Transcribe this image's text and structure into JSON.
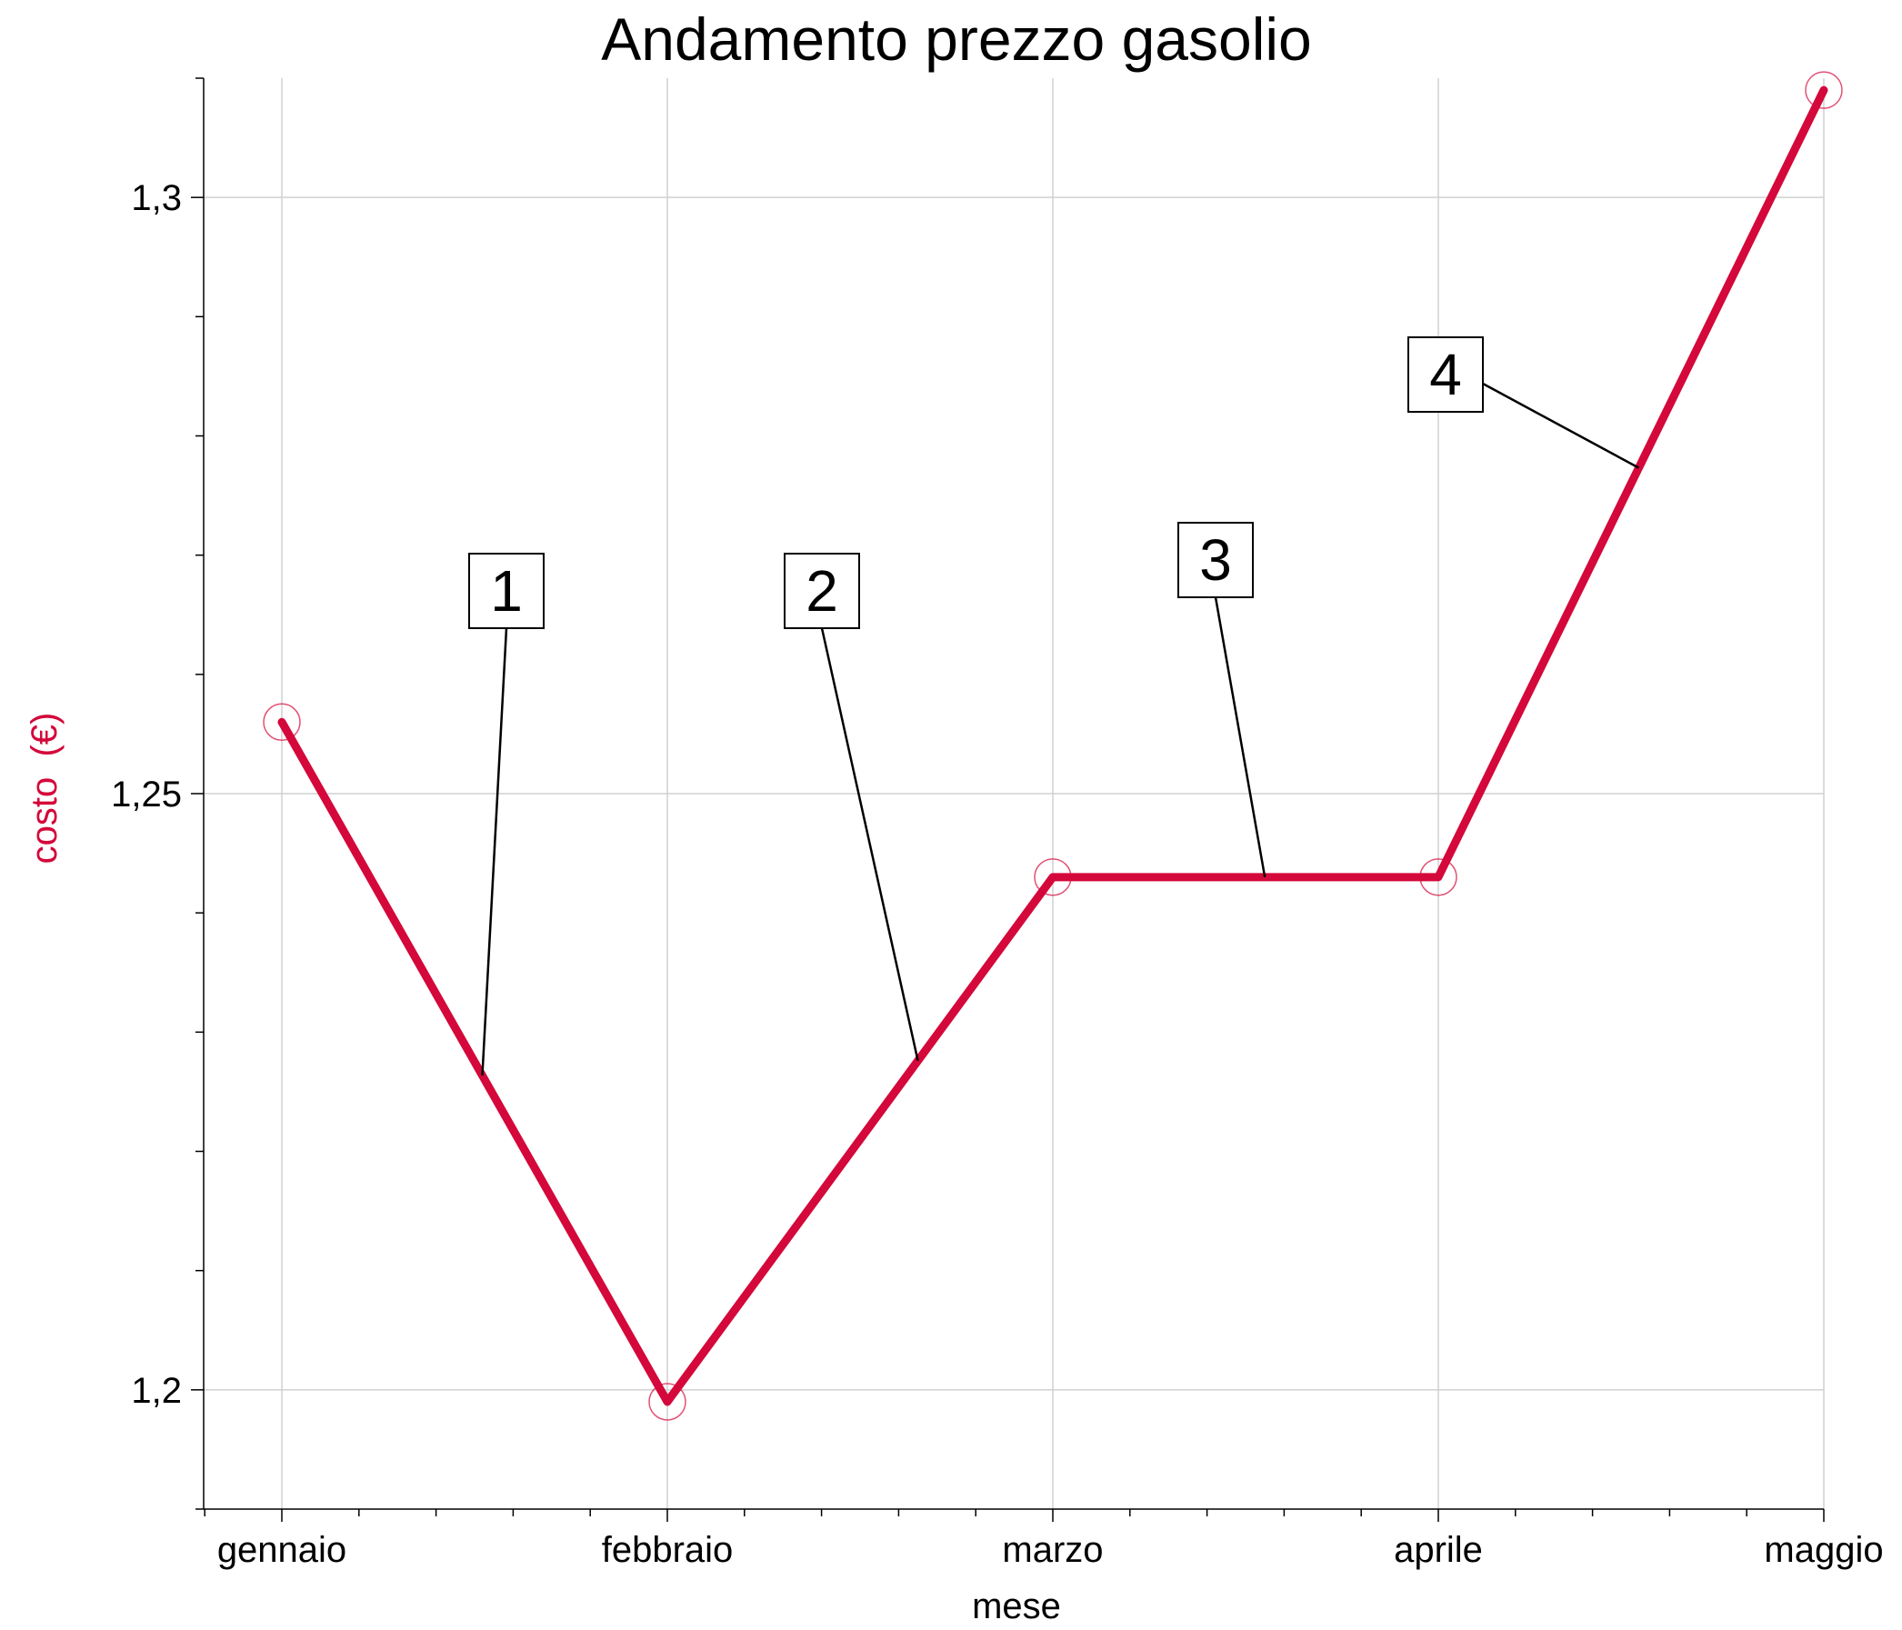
{
  "chart_data": {
    "type": "line",
    "title": "Andamento prezzo gasolio",
    "xlabel": "mese",
    "ylabel": "costo  (€)",
    "categories": [
      "gennaio",
      "febbraio",
      "marzo",
      "aprile",
      "maggio"
    ],
    "series": [
      {
        "values": [
          1.256,
          1.199,
          1.243,
          1.243,
          1.309
        ]
      }
    ],
    "ylim": [
      1.19,
      1.31
    ],
    "y_ticks": [
      {
        "value": 1.2,
        "label": "1,2"
      },
      {
        "value": 1.25,
        "label": "1,25"
      },
      {
        "value": 1.3,
        "label": "1,3"
      }
    ],
    "grid": true,
    "annotations": [
      {
        "text": "1",
        "segment": 1
      },
      {
        "text": "2",
        "segment": 2
      },
      {
        "text": "3",
        "segment": 3
      },
      {
        "text": "4",
        "segment": 4
      }
    ],
    "colors": {
      "line": "#d4083a",
      "ylabel": "#d4083a"
    }
  }
}
